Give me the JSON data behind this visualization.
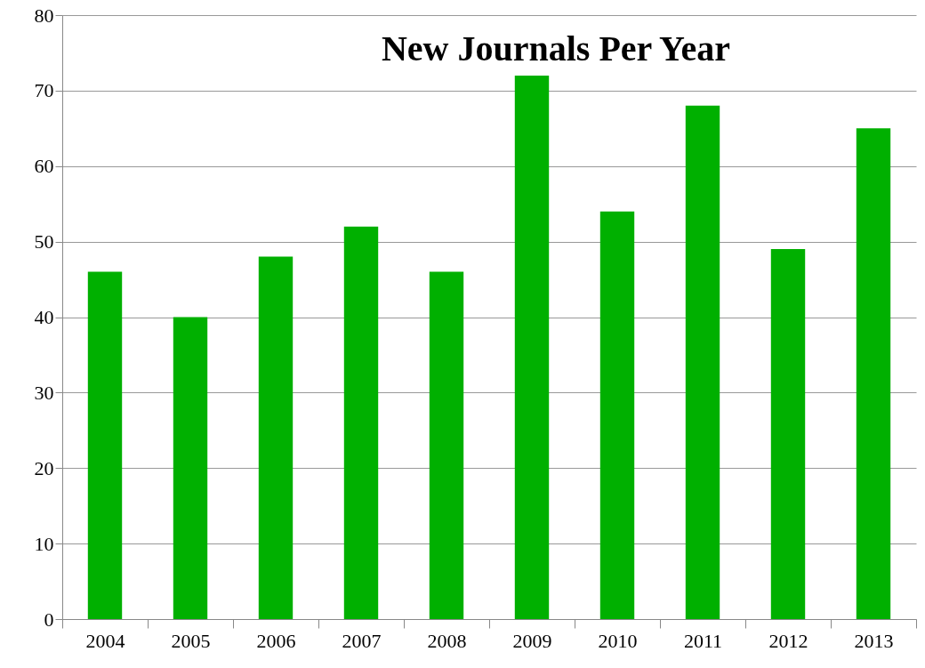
{
  "chart_data": {
    "type": "bar",
    "title": "New Journals Per Year",
    "categories": [
      "2004",
      "2005",
      "2006",
      "2007",
      "2008",
      "2009",
      "2010",
      "2011",
      "2012",
      "2013"
    ],
    "values": [
      46,
      40,
      48,
      52,
      46,
      72,
      54,
      68,
      49,
      65
    ],
    "color": "#00b000",
    "ylim": [
      0,
      80
    ],
    "yticks": [
      0,
      10,
      20,
      30,
      40,
      50,
      60,
      70,
      80
    ],
    "grid": "y"
  }
}
